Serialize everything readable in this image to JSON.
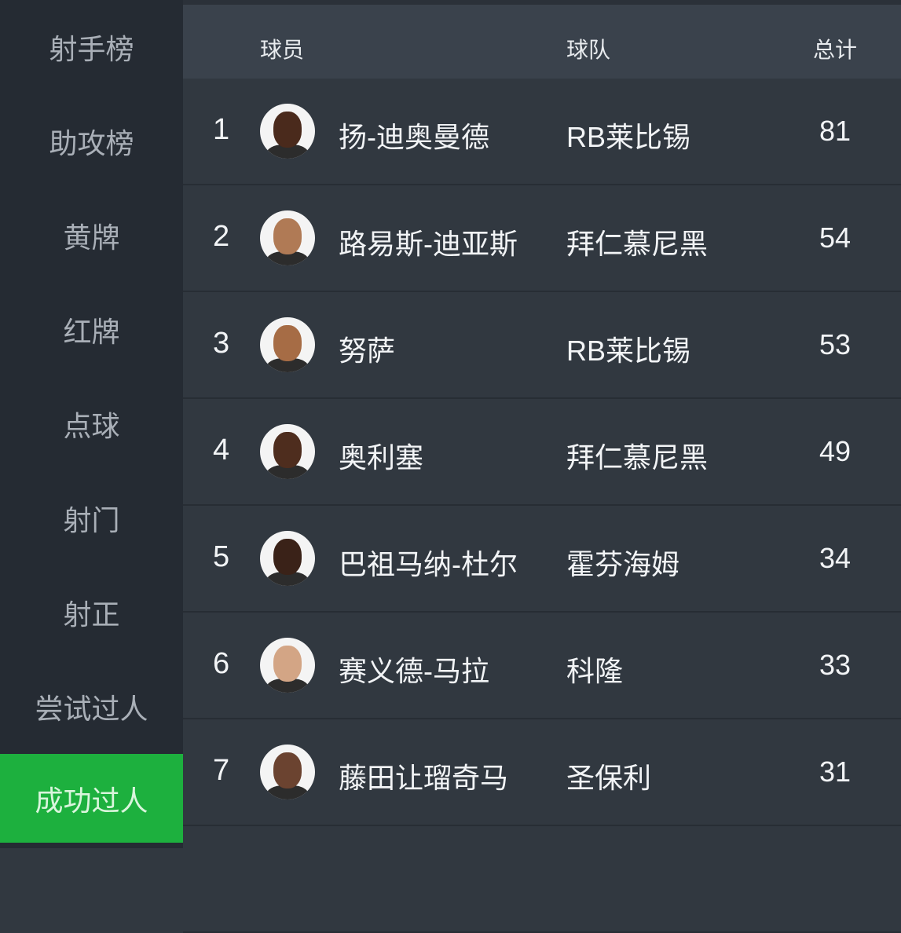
{
  "sidebar": {
    "items": [
      {
        "label": "射手榜",
        "active": false
      },
      {
        "label": "助攻榜",
        "active": false
      },
      {
        "label": "黄牌",
        "active": false
      },
      {
        "label": "红牌",
        "active": false
      },
      {
        "label": "点球",
        "active": false
      },
      {
        "label": "射门",
        "active": false
      },
      {
        "label": "射正",
        "active": false
      },
      {
        "label": "尝试过人",
        "active": false
      },
      {
        "label": "成功过人",
        "active": true
      }
    ],
    "active_color": "#1db03e"
  },
  "table": {
    "headers": {
      "player": "球员",
      "team": "球队",
      "total": "总计"
    },
    "rows": [
      {
        "rank": "1",
        "player": "扬-迪奥曼德",
        "team": "RB莱比锡",
        "total": "81",
        "skin": "#4a2a1c"
      },
      {
        "rank": "2",
        "player": "路易斯-迪亚斯",
        "team": "拜仁慕尼黑",
        "total": "54",
        "skin": "#b07a55"
      },
      {
        "rank": "3",
        "player": "努萨",
        "team": "RB莱比锡",
        "total": "53",
        "skin": "#a66c45"
      },
      {
        "rank": "4",
        "player": "奥利塞",
        "team": "拜仁慕尼黑",
        "total": "49",
        "skin": "#4e2d1e"
      },
      {
        "rank": "5",
        "player": "巴祖马纳-杜尔",
        "team": "霍芬海姆",
        "total": "34",
        "skin": "#3a2218"
      },
      {
        "rank": "6",
        "player": "赛义德-马拉",
        "team": "科隆",
        "total": "33",
        "skin": "#d3a585"
      },
      {
        "rank": "7",
        "player": "藤田让瑠奇马",
        "team": "圣保利",
        "total": "31",
        "skin": "#6b4330"
      }
    ]
  }
}
